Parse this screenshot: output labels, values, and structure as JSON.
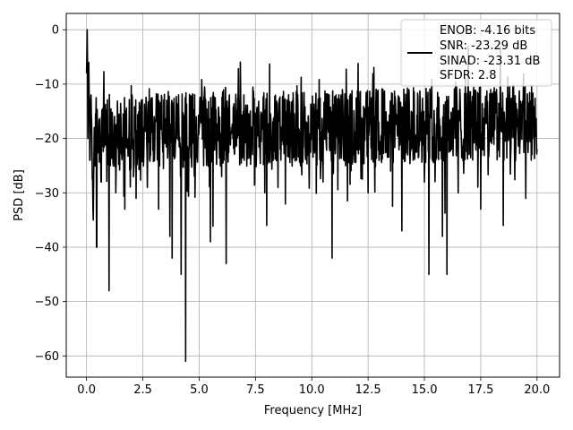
{
  "chart_data": {
    "type": "line",
    "xlabel": "Frequency [MHz]",
    "ylabel": "PSD [dB]",
    "xlim": [
      -0.9,
      21.0
    ],
    "ylim": [
      -63.9,
      3.0
    ],
    "xticks": [
      0.0,
      2.5,
      5.0,
      7.5,
      10.0,
      12.5,
      15.0,
      17.5,
      20.0
    ],
    "xtick_labels": [
      "0.0",
      "2.5",
      "5.0",
      "7.5",
      "10.0",
      "12.5",
      "15.0",
      "17.5",
      "20.0"
    ],
    "yticks": [
      0,
      -10,
      -20,
      -30,
      -40,
      -50,
      -60
    ],
    "ytick_labels": [
      "0",
      "−10",
      "−20",
      "−30",
      "−40",
      "−50",
      "−60"
    ],
    "grid": true,
    "legend_position": "top-right",
    "legend_entries": [
      "ENOB: -4.16 bits",
      "SNR: -23.29 dB",
      "SINAD: -23.31 dB",
      "SFDR: 2.8"
    ],
    "series": [
      {
        "color": "#000000",
        "x_range": [
          0.0,
          20.0
        ],
        "approx_points": [
          [
            0.0,
            -8
          ],
          [
            0.03,
            0
          ],
          [
            0.06,
            -20
          ],
          [
            0.1,
            -6
          ],
          [
            0.15,
            -24
          ],
          [
            0.2,
            -12
          ],
          [
            0.3,
            -35
          ],
          [
            0.35,
            -18
          ],
          [
            0.45,
            -40
          ],
          [
            0.5,
            -22
          ],
          [
            0.65,
            -28
          ],
          [
            0.8,
            -17
          ],
          [
            1.0,
            -48
          ],
          [
            1.05,
            -25
          ],
          [
            1.3,
            -30
          ],
          [
            1.5,
            -18
          ],
          [
            1.7,
            -33
          ],
          [
            2.0,
            -21
          ],
          [
            2.2,
            -31
          ],
          [
            2.5,
            -18
          ],
          [
            2.7,
            -29
          ],
          [
            3.0,
            -16
          ],
          [
            3.2,
            -33
          ],
          [
            3.5,
            -20
          ],
          [
            3.7,
            -38
          ],
          [
            3.8,
            -42
          ],
          [
            4.0,
            -20
          ],
          [
            4.2,
            -45
          ],
          [
            4.4,
            -61
          ],
          [
            4.5,
            -24
          ],
          [
            4.7,
            -20
          ],
          [
            5.0,
            -18
          ],
          [
            5.2,
            -25
          ],
          [
            5.5,
            -39
          ],
          [
            5.7,
            -20
          ],
          [
            6.0,
            -27
          ],
          [
            6.2,
            -43
          ],
          [
            6.5,
            -20
          ],
          [
            7.0,
            -24
          ],
          [
            7.5,
            -16
          ],
          [
            8.0,
            -36
          ],
          [
            8.2,
            -20
          ],
          [
            8.5,
            -29
          ],
          [
            9.0,
            -17
          ],
          [
            9.5,
            -25
          ],
          [
            10.0,
            -19
          ],
          [
            10.5,
            -28
          ],
          [
            10.9,
            -42
          ],
          [
            11.0,
            -22
          ],
          [
            11.5,
            -25
          ],
          [
            12.0,
            -20
          ],
          [
            12.5,
            -30
          ],
          [
            13.0,
            -21
          ],
          [
            13.5,
            -26
          ],
          [
            14.0,
            -37
          ],
          [
            14.5,
            -24
          ],
          [
            15.0,
            -28
          ],
          [
            15.2,
            -45
          ],
          [
            15.5,
            -24
          ],
          [
            15.8,
            -38
          ],
          [
            16.0,
            -45
          ],
          [
            16.2,
            -22
          ],
          [
            16.5,
            -30
          ],
          [
            17.0,
            -22
          ],
          [
            17.5,
            -33
          ],
          [
            18.0,
            -20
          ],
          [
            18.5,
            -36
          ],
          [
            19.0,
            -23
          ],
          [
            19.5,
            -31
          ],
          [
            19.8,
            -20
          ],
          [
            20.0,
            -22
          ]
        ]
      }
    ]
  }
}
